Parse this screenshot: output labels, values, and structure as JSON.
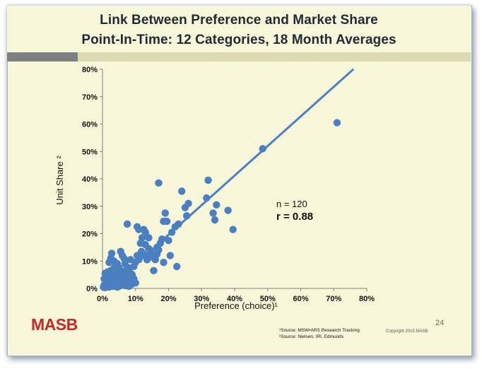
{
  "slide": {
    "title_line1": "Link Between Preference and Market Share",
    "title_line2": "Point-In-Time: 12 Categories, 18 Month Averages",
    "page_number": "24",
    "copyright": "Copyright 2015 MASB",
    "logo_text": "MASB",
    "source_1": "¹Source: MSW•ARS Research Tracking",
    "source_2": "²Source: Nielsen, IRI, Edmunds",
    "stats": {
      "n": "n = 120",
      "r": "r = 0.88"
    },
    "colors": {
      "background": "#f8f6d8",
      "point": "#4a7fc1",
      "line": "#4a7fc1",
      "title": "#1f2a35",
      "band_dark": "#7f7f7f",
      "band_light": "#ddd9b3",
      "logo": "#c62828"
    }
  },
  "chart_data": {
    "type": "scatter",
    "title": "",
    "xlabel": "Preference (choice)¹",
    "ylabel": "Unit Share ²",
    "xlim": [
      0,
      80
    ],
    "ylim": [
      0,
      80
    ],
    "x_ticks": [
      "0%",
      "10%",
      "20%",
      "30%",
      "40%",
      "50%",
      "60%",
      "70%",
      "80%"
    ],
    "y_ticks": [
      "0%",
      "10%",
      "20%",
      "30%",
      "40%",
      "50%",
      "60%",
      "70%",
      "80%"
    ],
    "grid": false,
    "series": [
      {
        "points": [
          [
            0.3,
            0.5
          ],
          [
            0.5,
            1.2
          ],
          [
            0.8,
            0.3
          ],
          [
            1.0,
            2.0
          ],
          [
            1.2,
            0.8
          ],
          [
            1.5,
            3.0
          ],
          [
            1.8,
            1.5
          ],
          [
            2.0,
            0.5
          ],
          [
            2.2,
            2.5
          ],
          [
            2.5,
            4.0
          ],
          [
            2.8,
            1.0
          ],
          [
            3.0,
            3.5
          ],
          [
            3.2,
            0.8
          ],
          [
            3.5,
            5.0
          ],
          [
            3.8,
            2.0
          ],
          [
            4.0,
            1.2
          ],
          [
            4.2,
            3.0
          ],
          [
            4.5,
            4.5
          ],
          [
            4.8,
            2.5
          ],
          [
            5.0,
            0.8
          ],
          [
            5.2,
            5.5
          ],
          [
            5.5,
            3.0
          ],
          [
            5.8,
            1.5
          ],
          [
            6.0,
            4.0
          ],
          [
            6.2,
            6.0
          ],
          [
            6.5,
            2.0
          ],
          [
            6.8,
            3.5
          ],
          [
            7.0,
            1.0
          ],
          [
            7.2,
            5.0
          ],
          [
            7.5,
            2.5
          ],
          [
            7.8,
            4.0
          ],
          [
            8.0,
            0.8
          ],
          [
            8.2,
            3.0
          ],
          [
            8.5,
            5.5
          ],
          [
            8.8,
            1.5
          ],
          [
            9.0,
            3.5
          ],
          [
            1.0,
            4.5
          ],
          [
            1.5,
            6.0
          ],
          [
            2.0,
            5.5
          ],
          [
            2.5,
            6.5
          ],
          [
            3.0,
            6.0
          ],
          [
            0.8,
            5.5
          ],
          [
            1.2,
            4.8
          ],
          [
            2.2,
            1.0
          ],
          [
            3.5,
            2.2
          ],
          [
            4.0,
            6.5
          ],
          [
            4.5,
            0.5
          ],
          [
            5.5,
            6.5
          ],
          [
            6.5,
            5.0
          ],
          [
            7.0,
            6.5
          ],
          [
            2.0,
            9.5
          ],
          [
            2.5,
            11.0
          ],
          [
            2.8,
            12.8
          ],
          [
            3.5,
            10.0
          ],
          [
            4.0,
            8.0
          ],
          [
            5.0,
            7.5
          ],
          [
            5.5,
            13.5
          ],
          [
            6.0,
            12.0
          ],
          [
            6.5,
            11.0
          ],
          [
            6.8,
            9.0
          ],
          [
            7.5,
            23.5
          ],
          [
            8.0,
            7.5
          ],
          [
            9.0,
            5.0
          ],
          [
            9.5,
            8.0
          ],
          [
            10.0,
            9.5
          ],
          [
            10.5,
            12.0
          ],
          [
            11.0,
            10.5
          ],
          [
            11.5,
            16.5
          ],
          [
            12.0,
            18.5
          ],
          [
            12.5,
            21.5
          ],
          [
            10.5,
            22.5
          ],
          [
            11.0,
            21.5
          ],
          [
            11.8,
            13.5
          ],
          [
            12.5,
            12.5
          ],
          [
            13.0,
            20.5
          ],
          [
            13.5,
            10.5
          ],
          [
            14.0,
            18.5
          ],
          [
            14.5,
            11.5
          ],
          [
            15.0,
            13.0
          ],
          [
            15.5,
            6.5
          ],
          [
            16.0,
            10.5
          ],
          [
            16.5,
            12.5
          ],
          [
            17.0,
            38.5
          ],
          [
            17.5,
            16.5
          ],
          [
            18.0,
            18.0
          ],
          [
            18.5,
            24.5
          ],
          [
            19.0,
            27.5
          ],
          [
            19.5,
            24.5
          ],
          [
            20.0,
            17.5
          ],
          [
            20.5,
            12.0
          ],
          [
            21.0,
            20.5
          ],
          [
            22.0,
            22.5
          ],
          [
            22.5,
            8.0
          ],
          [
            23.0,
            23.5
          ],
          [
            24.0,
            35.5
          ],
          [
            25.0,
            29.5
          ],
          [
            25.5,
            26.5
          ],
          [
            26.0,
            31.0
          ],
          [
            31.5,
            33.0
          ],
          [
            32.0,
            39.5
          ],
          [
            33.5,
            27.5
          ],
          [
            34.0,
            25.0
          ],
          [
            34.5,
            30.5
          ],
          [
            38.0,
            28.5
          ],
          [
            39.5,
            21.5
          ],
          [
            48.5,
            51.0
          ],
          [
            71.0,
            60.5
          ],
          [
            16.5,
            15.0
          ],
          [
            17.0,
            14.0
          ],
          [
            18.5,
            9.5
          ],
          [
            13.0,
            16.0
          ],
          [
            14.0,
            14.5
          ],
          [
            9.5,
            3.5
          ],
          [
            10.0,
            2.0
          ],
          [
            8.5,
            10.5
          ],
          [
            3.5,
            7.5
          ],
          [
            4.5,
            9.0
          ],
          [
            1.5,
            1.5
          ],
          [
            0.5,
            3.5
          ],
          [
            6.0,
            2.0
          ]
        ]
      }
    ],
    "trendline": {
      "slope": 1.08,
      "intercept": -2.0,
      "x_range": [
        0,
        76
      ]
    },
    "annotations": [
      "n = 120",
      "r = 0.88"
    ]
  }
}
